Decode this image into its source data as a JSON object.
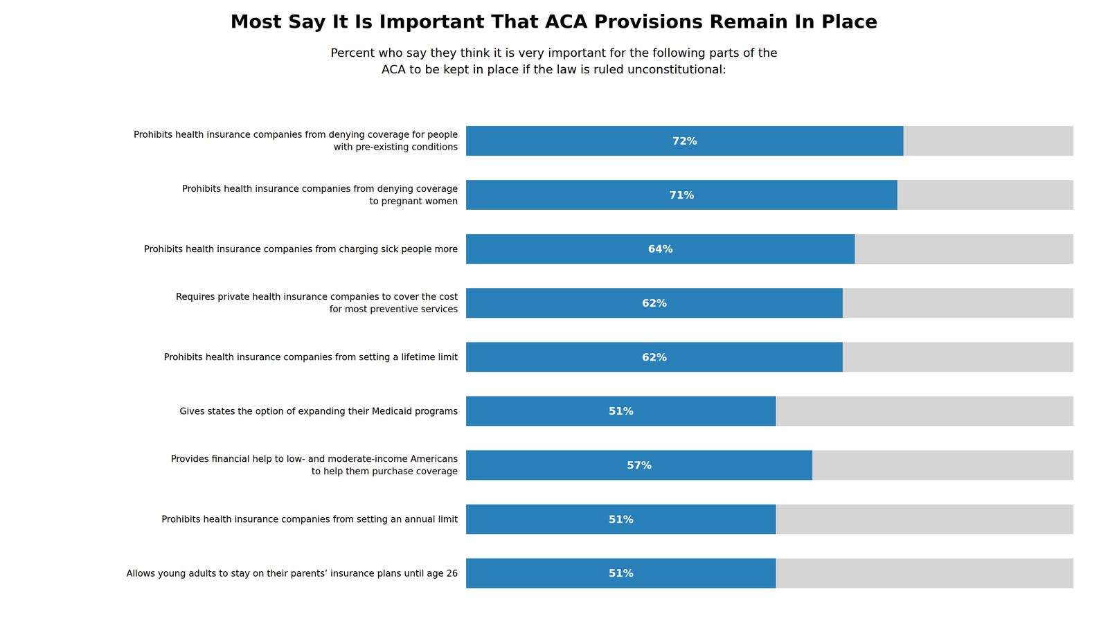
{
  "chart_data": {
    "type": "bar",
    "orientation": "horizontal",
    "title": "Most Say It Is Important That ACA Provisions Remain In Place",
    "subtitle": "Percent who say they think it is very important for the following parts of the\nACA to be kept in place if the law is ruled unconstitutional:",
    "categories": [
      "Prohibits health insurance companies from denying coverage for people\nwith pre-existing conditions",
      "Prohibits health insurance companies from denying coverage\nto pregnant women",
      "Prohibits health insurance companies from charging sick people more",
      "Requires private health insurance companies to cover the cost\nfor most preventive services",
      "Prohibits health insurance companies from setting a lifetime limit",
      "Gives states the option of expanding their Medicaid programs",
      "Provides financial help to low- and moderate-income Americans\nto help them purchase coverage",
      "Prohibits health insurance companies from setting an annual limit",
      "Allows young adults to stay on their parents’ insurance plans until age 26"
    ],
    "values": [
      72,
      71,
      64,
      62,
      62,
      51,
      57,
      51,
      51
    ],
    "value_labels": [
      "72%",
      "71%",
      "64%",
      "62%",
      "62%",
      "51%",
      "57%",
      "51%",
      "51%"
    ],
    "color": "#2980b9",
    "xlim": [
      0,
      100
    ],
    "tick_labels": "y",
    "grid": false,
    "data_labels": true
  }
}
